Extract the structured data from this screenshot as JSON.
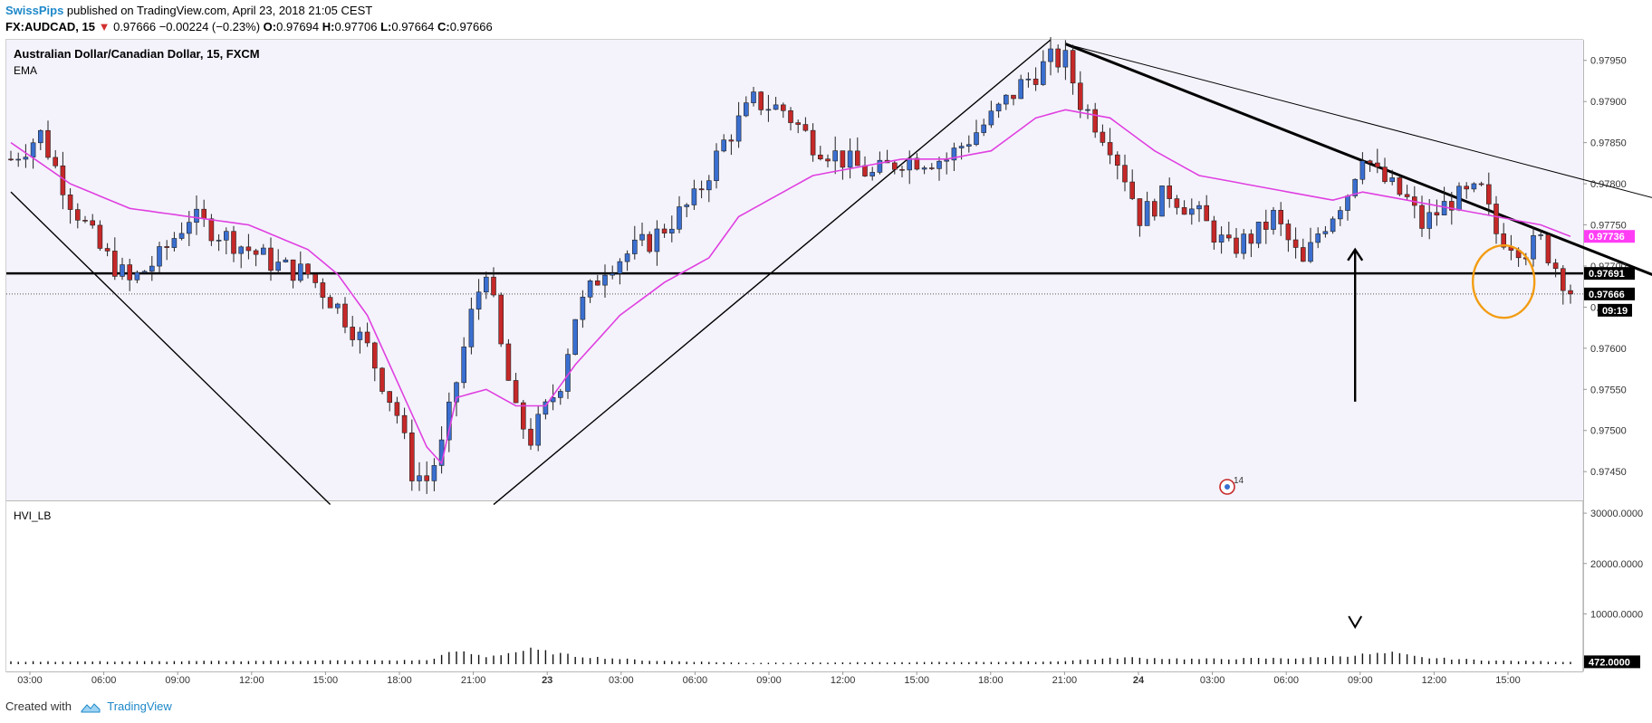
{
  "header": {
    "author": "SwissPips",
    "published_text": " published on TradingView.com, April 23, 2018 21:05 CEST"
  },
  "ohlc": {
    "symbol": "FX:AUDCAD, 15",
    "last": "0.97666",
    "change": "−0.00224 (−0.23%)",
    "o_label": "O:",
    "o": "0.97694",
    "h_label": "H:",
    "h": "0.97706",
    "l_label": "L:",
    "l": "0.97664",
    "c_label": "C:",
    "c": "0.97666"
  },
  "chart_title": "Australian Dollar/Canadian Dollar, 15, FXCM",
  "indicator_label": "EMA",
  "volume_label": "HVI_LB",
  "footer": {
    "created_with": "Created with",
    "brand": "TradingView"
  },
  "colors": {
    "up_candle": "#3a6fd1",
    "down_candle": "#c62828",
    "ema": "#e040e0",
    "annotation_circle": "#f39c12",
    "background_shade": "#f4f3fc",
    "ema_tag": "#ff3df5",
    "price_tag": "#000000",
    "author": "#1e88c9"
  },
  "chart_data": {
    "type": "candlestick",
    "title": "Australian Dollar/Canadian Dollar, 15, FXCM",
    "price_ticks": [
      "0.97950",
      "0.97900",
      "0.97850",
      "0.97800",
      "0.97750",
      "0.97700",
      "0.97650",
      "0.97600",
      "0.97550",
      "0.97500",
      "0.97450"
    ],
    "price_tags": {
      "ema": "0.97736",
      "support": "0.97691",
      "last": "0.97666",
      "countdown": "09:19"
    },
    "support_level": 0.97691,
    "ylim": [
      0.97415,
      0.97975
    ],
    "volume_ticks": [
      "30000.0000",
      "20000.0000",
      "10000.0000"
    ],
    "volume_tag": "472.0000",
    "volume_ylim": [
      0,
      32000
    ],
    "time_ticks": [
      "03:00",
      "06:00",
      "09:00",
      "12:00",
      "15:00",
      "18:00",
      "21:00",
      "23",
      "03:00",
      "06:00",
      "09:00",
      "12:00",
      "15:00",
      "18:00",
      "21:00",
      "24",
      "03:00",
      "06:00",
      "09:00",
      "12:00",
      "15:00"
    ],
    "time_tick_step_hours": 3,
    "alert_badge": "14",
    "price_path_knots": [
      [
        0,
        0.9783
      ],
      [
        4,
        0.9786
      ],
      [
        8,
        0.9778
      ],
      [
        12,
        0.9772
      ],
      [
        16,
        0.9768
      ],
      [
        20,
        0.9771
      ],
      [
        24,
        0.9776
      ],
      [
        28,
        0.9774
      ],
      [
        32,
        0.9772
      ],
      [
        36,
        0.977
      ],
      [
        40,
        0.9769
      ],
      [
        44,
        0.9765
      ],
      [
        48,
        0.976
      ],
      [
        52,
        0.9752
      ],
      [
        54,
        0.9745
      ],
      [
        56,
        0.9744
      ],
      [
        58,
        0.9748
      ],
      [
        62,
        0.9764
      ],
      [
        64,
        0.977
      ],
      [
        66,
        0.976
      ],
      [
        68,
        0.9752
      ],
      [
        70,
        0.9749
      ],
      [
        74,
        0.9756
      ],
      [
        76,
        0.9764
      ],
      [
        80,
        0.977
      ],
      [
        86,
        0.9773
      ],
      [
        92,
        0.9778
      ],
      [
        96,
        0.9785
      ],
      [
        100,
        0.979
      ],
      [
        104,
        0.9789
      ],
      [
        108,
        0.9785
      ],
      [
        112,
        0.9783
      ],
      [
        116,
        0.9781
      ],
      [
        120,
        0.9783
      ],
      [
        126,
        0.9783
      ],
      [
        132,
        0.9788
      ],
      [
        136,
        0.9792
      ],
      [
        140,
        0.9795
      ],
      [
        142,
        0.9795
      ],
      [
        144,
        0.979
      ],
      [
        148,
        0.9785
      ],
      [
        150,
        0.9781
      ],
      [
        152,
        0.9776
      ],
      [
        156,
        0.9779
      ],
      [
        160,
        0.9776
      ],
      [
        164,
        0.9772
      ],
      [
        168,
        0.9774
      ],
      [
        170,
        0.9776
      ],
      [
        172,
        0.9773
      ],
      [
        174,
        0.977
      ],
      [
        176,
        0.9774
      ],
      [
        180,
        0.9779
      ],
      [
        182,
        0.9784
      ],
      [
        184,
        0.9781
      ],
      [
        188,
        0.9778
      ],
      [
        190,
        0.9775
      ],
      [
        194,
        0.9778
      ],
      [
        198,
        0.9779
      ],
      [
        200,
        0.9774
      ],
      [
        204,
        0.9772
      ],
      [
        206,
        0.9773
      ],
      [
        208,
        0.977
      ],
      [
        210,
        0.9767
      ]
    ],
    "ema_path_knots": [
      [
        0,
        0.9785
      ],
      [
        8,
        0.978
      ],
      [
        16,
        0.9777
      ],
      [
        24,
        0.9776
      ],
      [
        32,
        0.9775
      ],
      [
        40,
        0.9772
      ],
      [
        44,
        0.9769
      ],
      [
        48,
        0.9764
      ],
      [
        52,
        0.9756
      ],
      [
        56,
        0.9748
      ],
      [
        58,
        0.9746
      ],
      [
        60,
        0.9754
      ],
      [
        64,
        0.9755
      ],
      [
        68,
        0.9753
      ],
      [
        72,
        0.9753
      ],
      [
        76,
        0.9758
      ],
      [
        82,
        0.9764
      ],
      [
        88,
        0.9768
      ],
      [
        94,
        0.9771
      ],
      [
        98,
        0.9776
      ],
      [
        102,
        0.9778
      ],
      [
        108,
        0.9781
      ],
      [
        114,
        0.9782
      ],
      [
        120,
        0.9783
      ],
      [
        126,
        0.9783
      ],
      [
        132,
        0.9784
      ],
      [
        138,
        0.9788
      ],
      [
        142,
        0.9789
      ],
      [
        148,
        0.9788
      ],
      [
        154,
        0.9784
      ],
      [
        160,
        0.9781
      ],
      [
        166,
        0.978
      ],
      [
        172,
        0.9779
      ],
      [
        178,
        0.9778
      ],
      [
        182,
        0.9779
      ],
      [
        188,
        0.9778
      ],
      [
        194,
        0.9777
      ],
      [
        200,
        0.9776
      ],
      [
        206,
        0.9775
      ],
      [
        210,
        0.97736
      ]
    ],
    "volume_profile_knots": [
      [
        0,
        520
      ],
      [
        20,
        560
      ],
      [
        40,
        700
      ],
      [
        56,
        780
      ],
      [
        60,
        2600
      ],
      [
        64,
        1500
      ],
      [
        70,
        2900
      ],
      [
        76,
        1600
      ],
      [
        86,
        700
      ],
      [
        100,
        250
      ],
      [
        102,
        300
      ],
      [
        120,
        380
      ],
      [
        140,
        520
      ],
      [
        150,
        1300
      ],
      [
        160,
        1000
      ],
      [
        175,
        1250
      ],
      [
        182,
        1900
      ],
      [
        186,
        2200
      ],
      [
        190,
        1300
      ],
      [
        200,
        700
      ],
      [
        210,
        472
      ]
    ],
    "annotations": {
      "trendlines": [
        {
          "from": [
            0,
            0.9779
          ],
          "to": [
            43,
            0.9741
          ]
        },
        {
          "from": [
            65,
            0.9741
          ],
          "to": [
            140,
            0.97975
          ]
        },
        {
          "from": [
            142,
            0.9797
          ],
          "to": [
            242,
            0.97615
          ]
        },
        {
          "from": [
            142,
            0.9797
          ],
          "to": [
            287,
            0.97627
          ]
        }
      ],
      "arrow": {
        "bar": 181,
        "from": 0.97535,
        "to": 0.9772
      },
      "circle": {
        "bar": 201,
        "price": 0.97681
      }
    }
  }
}
